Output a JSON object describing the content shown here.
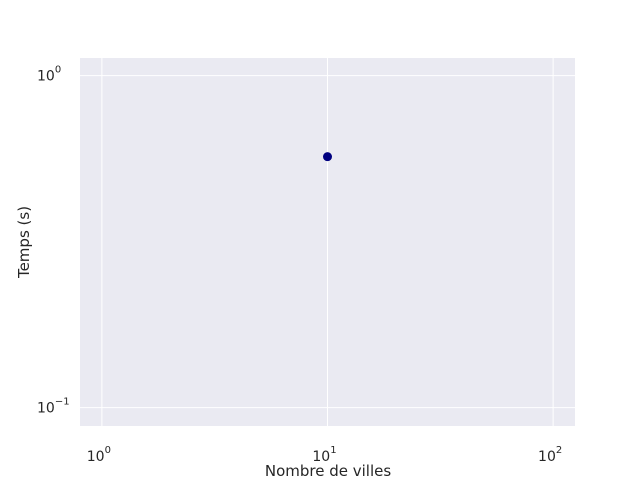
{
  "chart_data": {
    "type": "scatter",
    "title": "",
    "xlabel": "Nombre de villes",
    "ylabel": "Temps (s)",
    "xscale": "log",
    "yscale": "log",
    "xlim": [
      0.8,
      125
    ],
    "ylim": [
      0.088,
      1.13
    ],
    "grid": true,
    "background_color": "#eaeaf2",
    "grid_color": "#ffffff",
    "marker_color": "#000080",
    "x_ticks": [
      {
        "value": 1,
        "base": "10",
        "exponent": "0"
      },
      {
        "value": 10,
        "base": "10",
        "exponent": "1"
      },
      {
        "value": 100,
        "base": "10",
        "exponent": "2"
      }
    ],
    "y_ticks": [
      {
        "value": 0.1,
        "base": "10",
        "exponent": "−1"
      },
      {
        "value": 1,
        "base": "10",
        "exponent": "0"
      }
    ],
    "series": [
      {
        "x": [
          10
        ],
        "y": [
          0.57
        ]
      }
    ]
  }
}
